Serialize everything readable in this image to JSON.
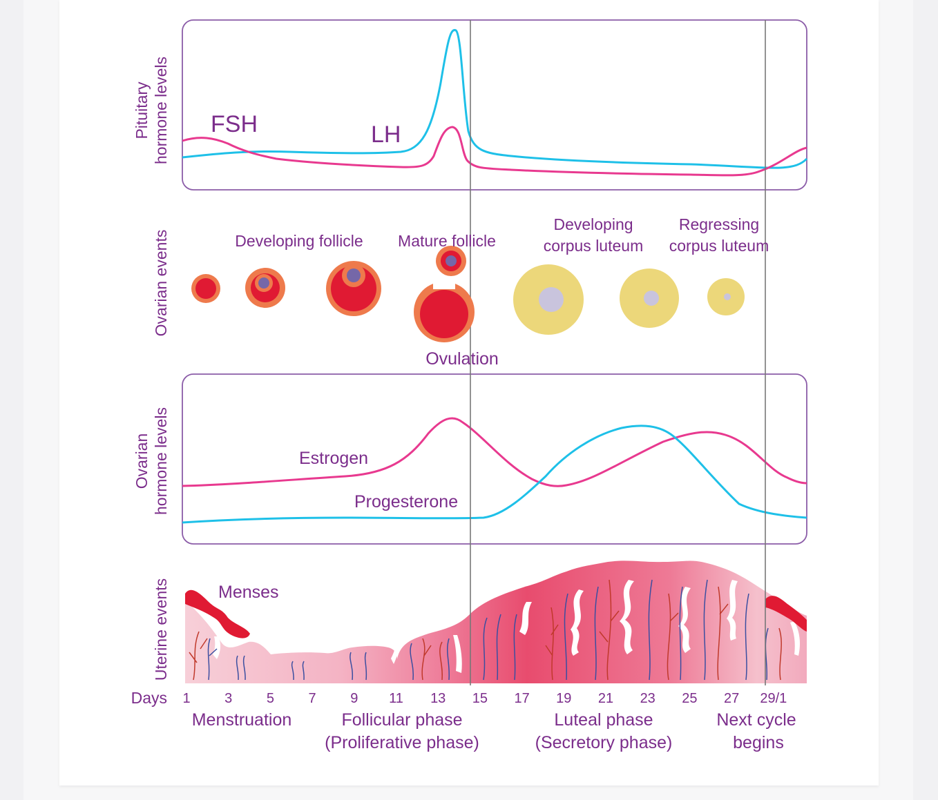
{
  "panels": {
    "pituitary": {
      "label_line1": "Pituitary",
      "label_line2": "hormone levels",
      "fsh": "FSH",
      "lh": "LH"
    },
    "ovarian_events": {
      "label": "Ovarian events",
      "developing_follicle": "Developing follicle",
      "mature_follicle": "Mature follicle",
      "developing_cl_line1": "Developing",
      "developing_cl_line2": "corpus luteum",
      "regressing_cl_line1": "Regressing",
      "regressing_cl_line2": "corpus luteum",
      "ovulation": "Ovulation"
    },
    "ovarian_hormones": {
      "label_line1": "Ovarian",
      "label_line2": "hormone levels",
      "estrogen": "Estrogen",
      "progesterone": "Progesterone"
    },
    "uterine": {
      "label": "Uterine events",
      "menses": "Menses"
    }
  },
  "axis": {
    "days_label": "Days",
    "ticks": [
      "1",
      "3",
      "5",
      "7",
      "9",
      "11",
      "13",
      "15",
      "17",
      "19",
      "21",
      "23",
      "25",
      "27",
      "29/1"
    ]
  },
  "phases": {
    "menstruation": "Menstruation",
    "follicular_line1": "Follicular phase",
    "follicular_line2": "(Proliferative phase)",
    "luteal_line1": "Luteal phase",
    "luteal_line2": "(Secretory phase)",
    "next_line1": "Next cycle",
    "next_line2": "begins"
  },
  "colors": {
    "purple": "#7b2d8b",
    "magenta": "#e8398f",
    "cyan": "#1ec0e8",
    "follicle_red": "#e01a33",
    "follicle_orange": "#ee7a4c",
    "luteum_yellow": "#ecd77a",
    "luteum_center": "#c9c4dd",
    "frame": "#8b5ca8"
  }
}
